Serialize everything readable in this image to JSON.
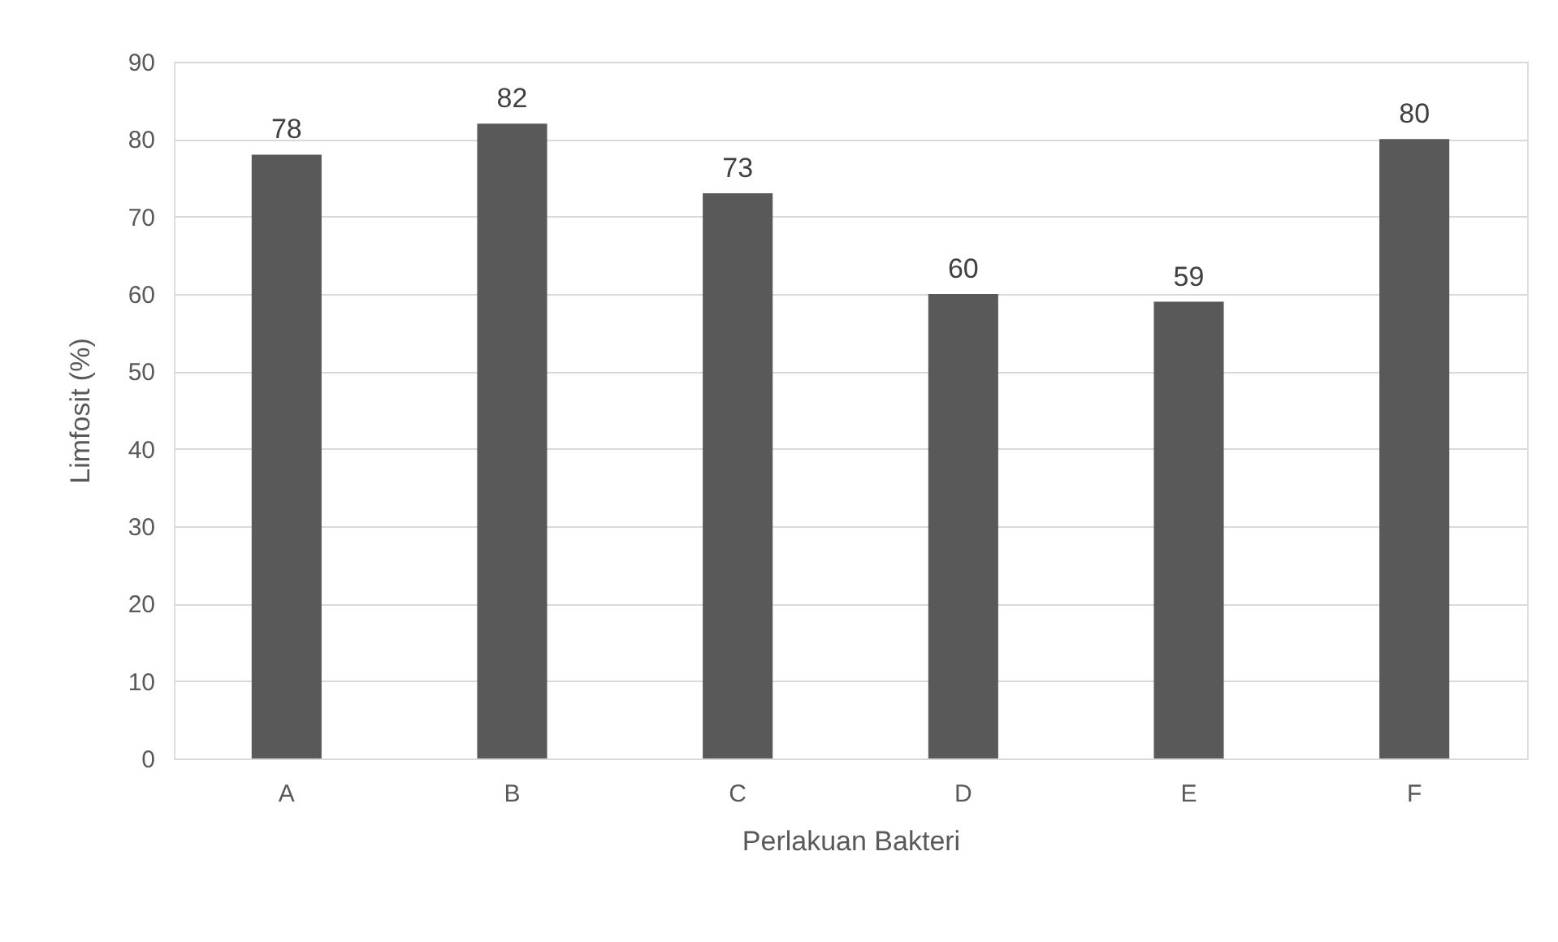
{
  "chart_data": {
    "type": "bar",
    "xlabel": "Perlakuan Bakteri",
    "ylabel": "Limfosit (%)",
    "categories": [
      "A",
      "B",
      "C",
      "D",
      "E",
      "F"
    ],
    "values": [
      78,
      82,
      73,
      60,
      59,
      80
    ],
    "color": "#595959",
    "ylim": [
      0,
      90
    ],
    "yticks": [
      0,
      10,
      20,
      30,
      40,
      50,
      60,
      70,
      80,
      90
    ],
    "grid": "y",
    "data_labels": true
  }
}
